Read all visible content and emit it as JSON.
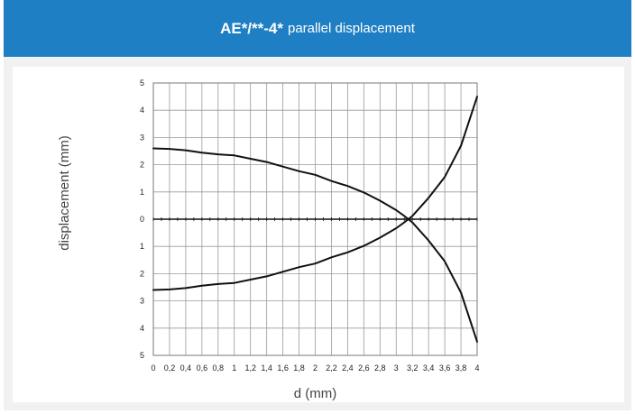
{
  "header": {
    "title_main": "AE*/**-4*",
    "title_sub": "parallel displacement",
    "background": "#1f7fc4"
  },
  "chart_data": {
    "type": "line",
    "title": "AE*/**-4* parallel displacement",
    "xlabel": "d (mm)",
    "ylabel": "displacement (mm)",
    "xlim": [
      0,
      4
    ],
    "ylim": [
      -5,
      5
    ],
    "grid": true,
    "x_tick_labels": [
      "0",
      "0,2",
      "0,4",
      "0,6",
      "0,8",
      "1",
      "1,2",
      "1,4",
      "1,6",
      "1,8",
      "2",
      "2,2",
      "2,4",
      "2,6",
      "2,8",
      "3",
      "3,2",
      "3,4",
      "3,6",
      "3,8",
      "4"
    ],
    "y_tick_labels": [
      "5",
      "4",
      "3",
      "2",
      "1",
      "0",
      "1",
      "2",
      "3",
      "4",
      "5"
    ],
    "line_color": "#111111",
    "series": [
      {
        "x": [
          0,
          0.2,
          0.4,
          0.6,
          0.8,
          1.0,
          1.2,
          1.4,
          1.6,
          1.8,
          2.0,
          2.2,
          2.4,
          2.6,
          2.8,
          3.0,
          3.1,
          3.2,
          3.4,
          3.6,
          3.8,
          4.0
        ],
        "y": [
          2.6,
          2.58,
          2.53,
          2.44,
          2.38,
          2.34,
          2.22,
          2.1,
          1.93,
          1.76,
          1.63,
          1.4,
          1.22,
          0.98,
          0.68,
          0.33,
          0.12,
          -0.12,
          -0.78,
          -1.55,
          -2.7,
          -4.5
        ]
      },
      {
        "x": [
          0,
          0.2,
          0.4,
          0.6,
          0.8,
          1.0,
          1.2,
          1.4,
          1.6,
          1.8,
          2.0,
          2.2,
          2.4,
          2.6,
          2.8,
          3.0,
          3.1,
          3.2,
          3.4,
          3.6,
          3.8,
          4.0
        ],
        "y": [
          -2.6,
          -2.58,
          -2.53,
          -2.44,
          -2.38,
          -2.34,
          -2.22,
          -2.1,
          -1.93,
          -1.76,
          -1.63,
          -1.4,
          -1.22,
          -0.98,
          -0.68,
          -0.33,
          -0.12,
          0.12,
          0.78,
          1.55,
          2.7,
          4.5
        ]
      }
    ]
  }
}
